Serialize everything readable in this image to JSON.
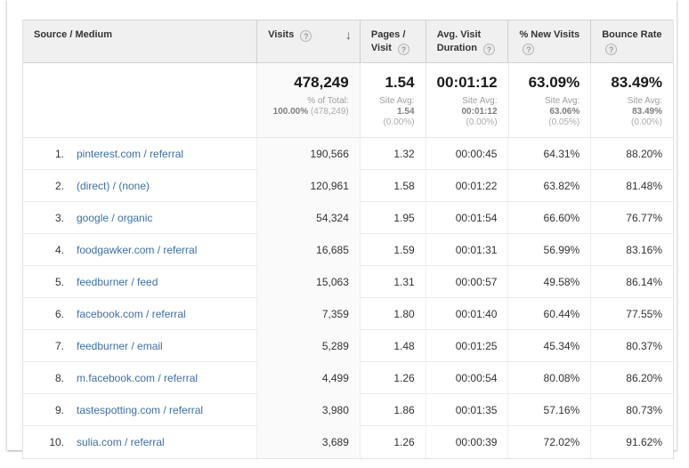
{
  "colors": {
    "link_blue": "#3d6fa8",
    "header_bg": "#f0f0f0",
    "sorted_column_bg": "#fafafa"
  },
  "icons": {
    "help": "?",
    "sort_descending": "↓"
  },
  "table": {
    "columns": {
      "source": {
        "label": "Source / Medium"
      },
      "visits": {
        "label": "Visits"
      },
      "pages": {
        "label": "Pages / Visit"
      },
      "duration": {
        "label": "Avg. Visit Duration"
      },
      "new_visits": {
        "label": "% New Visits"
      },
      "bounce": {
        "label": "Bounce Rate"
      }
    },
    "summary": {
      "visits": {
        "total": "478,249",
        "sub_label": "% of Total:",
        "sub_value": "100.00%",
        "sub_paren": "(478,249)"
      },
      "pages": {
        "total": "1.54",
        "sub_label": "Site Avg:",
        "sub_value": "1.54",
        "sub_paren": "(0.00%)"
      },
      "duration": {
        "total": "00:01:12",
        "sub_label": "Site Avg:",
        "sub_value": "00:01:12",
        "sub_paren": "(0.00%)"
      },
      "new_visits": {
        "total": "63.09%",
        "sub_label": "Site Avg:",
        "sub_value": "63.06%",
        "sub_paren": "(0.05%)"
      },
      "bounce": {
        "total": "83.49%",
        "sub_label": "Site Avg:",
        "sub_value": "83.49%",
        "sub_paren": "(0.00%)"
      }
    },
    "rows": [
      {
        "rank": "1.",
        "source": "pinterest.com / referral",
        "visits": "190,566",
        "pages": "1.32",
        "duration": "00:00:45",
        "new_visits": "64.31%",
        "bounce": "88.20%"
      },
      {
        "rank": "2.",
        "source": "(direct) / (none)",
        "visits": "120,961",
        "pages": "1.58",
        "duration": "00:01:22",
        "new_visits": "63.82%",
        "bounce": "81.48%"
      },
      {
        "rank": "3.",
        "source": "google / organic",
        "visits": "54,324",
        "pages": "1.95",
        "duration": "00:01:54",
        "new_visits": "66.60%",
        "bounce": "76.77%"
      },
      {
        "rank": "4.",
        "source": "foodgawker.com / referral",
        "visits": "16,685",
        "pages": "1.59",
        "duration": "00:01:31",
        "new_visits": "56.99%",
        "bounce": "83.16%"
      },
      {
        "rank": "5.",
        "source": "feedburner / feed",
        "visits": "15,063",
        "pages": "1.31",
        "duration": "00:00:57",
        "new_visits": "49.58%",
        "bounce": "86.14%"
      },
      {
        "rank": "6.",
        "source": "facebook.com / referral",
        "visits": "7,359",
        "pages": "1.80",
        "duration": "00:01:40",
        "new_visits": "60.44%",
        "bounce": "77.55%"
      },
      {
        "rank": "7.",
        "source": "feedburner / email",
        "visits": "5,289",
        "pages": "1.48",
        "duration": "00:01:25",
        "new_visits": "45.34%",
        "bounce": "80.37%"
      },
      {
        "rank": "8.",
        "source": "m.facebook.com / referral",
        "visits": "4,499",
        "pages": "1.26",
        "duration": "00:00:54",
        "new_visits": "80.08%",
        "bounce": "86.20%"
      },
      {
        "rank": "9.",
        "source": "tastespotting.com / referral",
        "visits": "3,980",
        "pages": "1.86",
        "duration": "00:01:35",
        "new_visits": "57.16%",
        "bounce": "80.73%"
      },
      {
        "rank": "10.",
        "source": "sulia.com / referral",
        "visits": "3,689",
        "pages": "1.26",
        "duration": "00:00:39",
        "new_visits": "72.02%",
        "bounce": "91.62%"
      }
    ]
  }
}
